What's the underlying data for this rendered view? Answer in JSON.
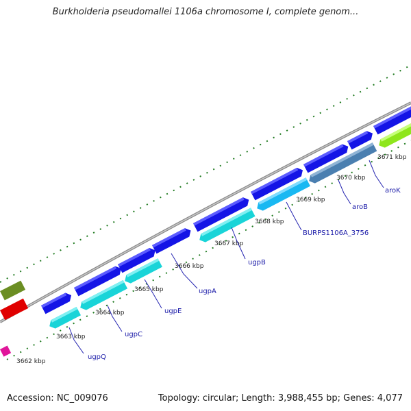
{
  "title": "Burkholderia pseudomallei 1106a chromosome I, complete genom...",
  "footer": {
    "accession": "Accession: NC_009076",
    "summary": "Topology: circular; Length: 3,988,455 bp; Genes: 4,077"
  },
  "ticks": [
    {
      "label": "3662 kbp"
    },
    {
      "label": "3663 kbp"
    },
    {
      "label": "3664 kbp"
    },
    {
      "label": "3665 kbp"
    },
    {
      "label": "3666 kbp"
    },
    {
      "label": "3667 kbp"
    },
    {
      "label": "3668 kbp"
    },
    {
      "label": "3669 kbp"
    },
    {
      "label": "3670 kbp"
    },
    {
      "label": "3671 kbp"
    }
  ],
  "gene_labels": [
    {
      "name": "ugpQ"
    },
    {
      "name": "ugpC"
    },
    {
      "name": "ugpE"
    },
    {
      "name": "ugpA"
    },
    {
      "name": "ugpB"
    },
    {
      "name": "BURPS1106A_3756"
    },
    {
      "name": "aroB"
    },
    {
      "name": "aroK"
    }
  ],
  "colors": {
    "backbone": "#8a8a8a",
    "forward_feature": "#1414e6",
    "reverse_feature": "#19d4d8",
    "tick_dash": "#1f7a1f",
    "label_line": "#2323b0"
  }
}
